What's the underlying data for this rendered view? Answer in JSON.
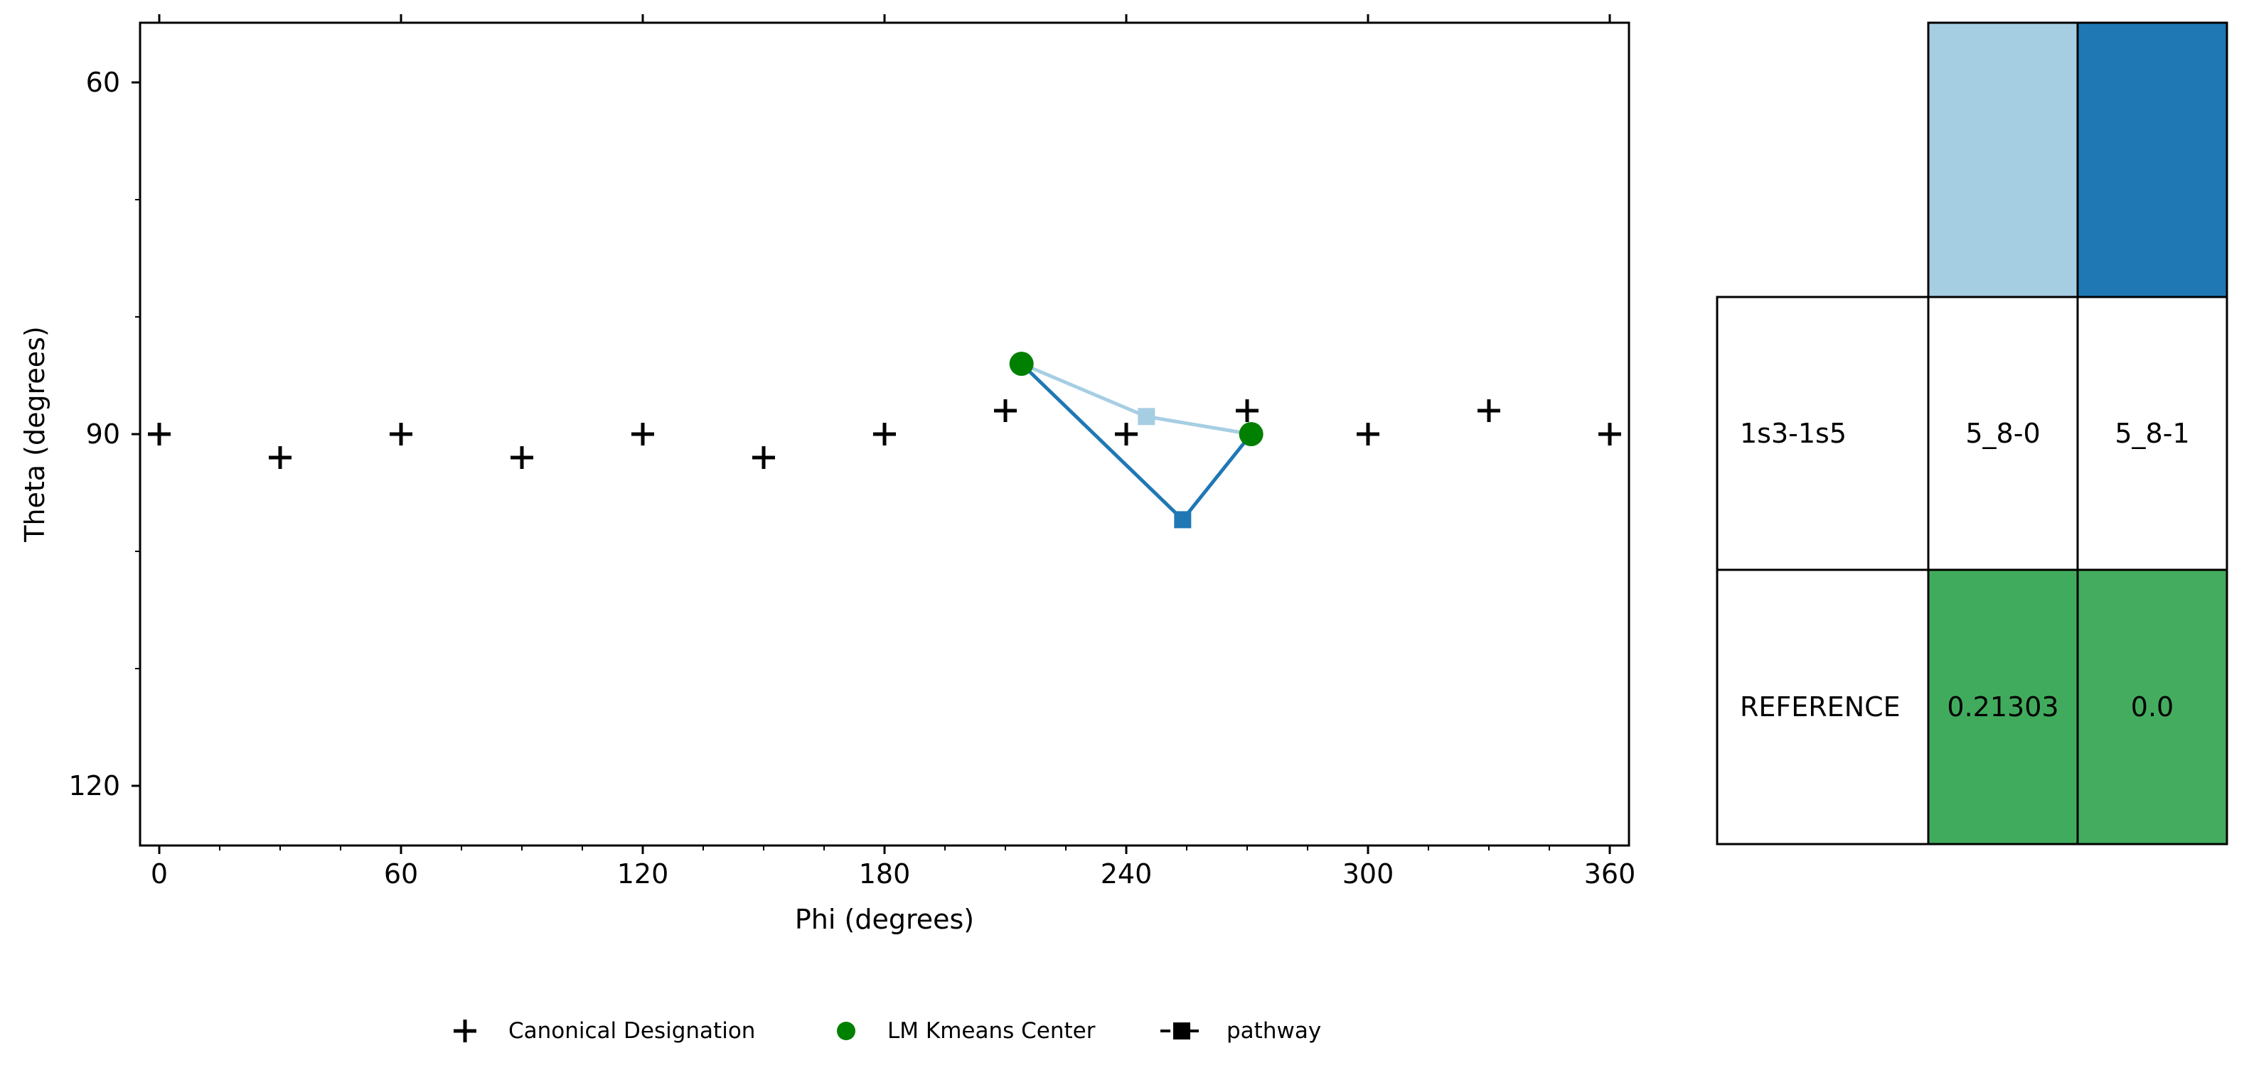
{
  "chart_data": {
    "type": "scatter",
    "xlabel": "Phi (degrees)",
    "ylabel": "Theta (degrees)",
    "xlim": [
      -4,
      305
    ],
    "ylim": [
      55,
      125
    ],
    "y_inverted": true,
    "xticks": [
      0,
      60,
      120,
      180,
      240,
      300,
      360
    ],
    "yticks": [
      60,
      90,
      120
    ],
    "grid": false,
    "legend_position": "bottom",
    "legend": [
      {
        "label": "Canonical Designation",
        "marker": "plus",
        "color": "#000000"
      },
      {
        "label": "LM Kmeans Center",
        "marker": "circle",
        "color": "#008000"
      },
      {
        "label": "pathway",
        "marker": "square-line",
        "color": "#000000"
      }
    ],
    "canonical_designations": [
      {
        "x": 0,
        "y": 90
      },
      {
        "x": 30,
        "y": 92
      },
      {
        "x": 60,
        "y": 90
      },
      {
        "x": 90,
        "y": 92
      },
      {
        "x": 120,
        "y": 90
      },
      {
        "x": 150,
        "y": 92
      },
      {
        "x": 180,
        "y": 90
      },
      {
        "x": 210,
        "y": 88
      },
      {
        "x": 240,
        "y": 90
      },
      {
        "x": 270,
        "y": 88
      },
      {
        "x": 300,
        "y": 90
      },
      {
        "x": 330,
        "y": 88
      },
      {
        "x": 360,
        "y": 90
      }
    ],
    "kmeans_centers": [
      {
        "x": 214,
        "y": 84
      },
      {
        "x": 271,
        "y": 90
      }
    ],
    "pathways": [
      {
        "name": "5_8-0",
        "color": "#a6cee3",
        "points": [
          {
            "x": 214,
            "y": 84
          },
          {
            "x": 245,
            "y": 88.5
          },
          {
            "x": 271,
            "y": 90
          }
        ],
        "mid_index": 1
      },
      {
        "name": "5_8-1",
        "color": "#1f78b4",
        "points": [
          {
            "x": 214,
            "y": 84
          },
          {
            "x": 254,
            "y": 97.3
          },
          {
            "x": 271,
            "y": 90
          }
        ],
        "mid_index": 1
      }
    ]
  },
  "table": {
    "header_colors": [
      "#a6cee3",
      "#1f78b4"
    ],
    "rows": [
      {
        "label": "1s3-1s5",
        "cells": [
          "5_8-0",
          "5_8-1"
        ],
        "cell_colors": [
          "#ffffff",
          "#ffffff"
        ]
      },
      {
        "label": "REFERENCE",
        "cells": [
          "0.21303",
          "0.0"
        ],
        "cell_colors": [
          "#41ab5d",
          "#44ac5e"
        ]
      }
    ]
  }
}
